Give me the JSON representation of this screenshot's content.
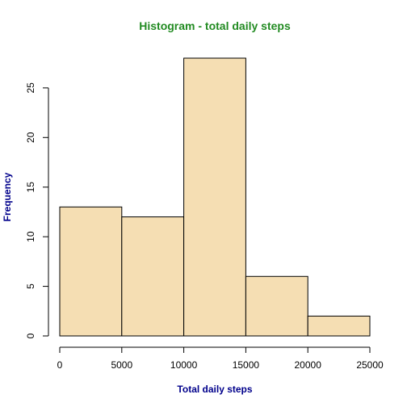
{
  "chart_data": {
    "type": "bar",
    "subtype": "histogram",
    "title": "Histogram - total daily steps",
    "xlabel": "Total daily steps",
    "ylabel": "Frequency",
    "bins": [
      {
        "from": 0,
        "to": 5000,
        "count": 13
      },
      {
        "from": 5000,
        "to": 10000,
        "count": 12
      },
      {
        "from": 10000,
        "to": 15000,
        "count": 28
      },
      {
        "from": 15000,
        "to": 20000,
        "count": 6
      },
      {
        "from": 20000,
        "to": 25000,
        "count": 2
      }
    ],
    "xlim": [
      0,
      25000
    ],
    "ylim": [
      0,
      28
    ],
    "x_ticks": [
      "0",
      "5000",
      "10000",
      "15000",
      "20000",
      "25000"
    ],
    "y_ticks": [
      "0",
      "5",
      "10",
      "15",
      "20",
      "25"
    ],
    "grid": false,
    "colors": {
      "bar_fill": "#f5deb3",
      "bar_stroke": "#000000",
      "title": "#228b22",
      "axis_title": "#00008b"
    }
  }
}
